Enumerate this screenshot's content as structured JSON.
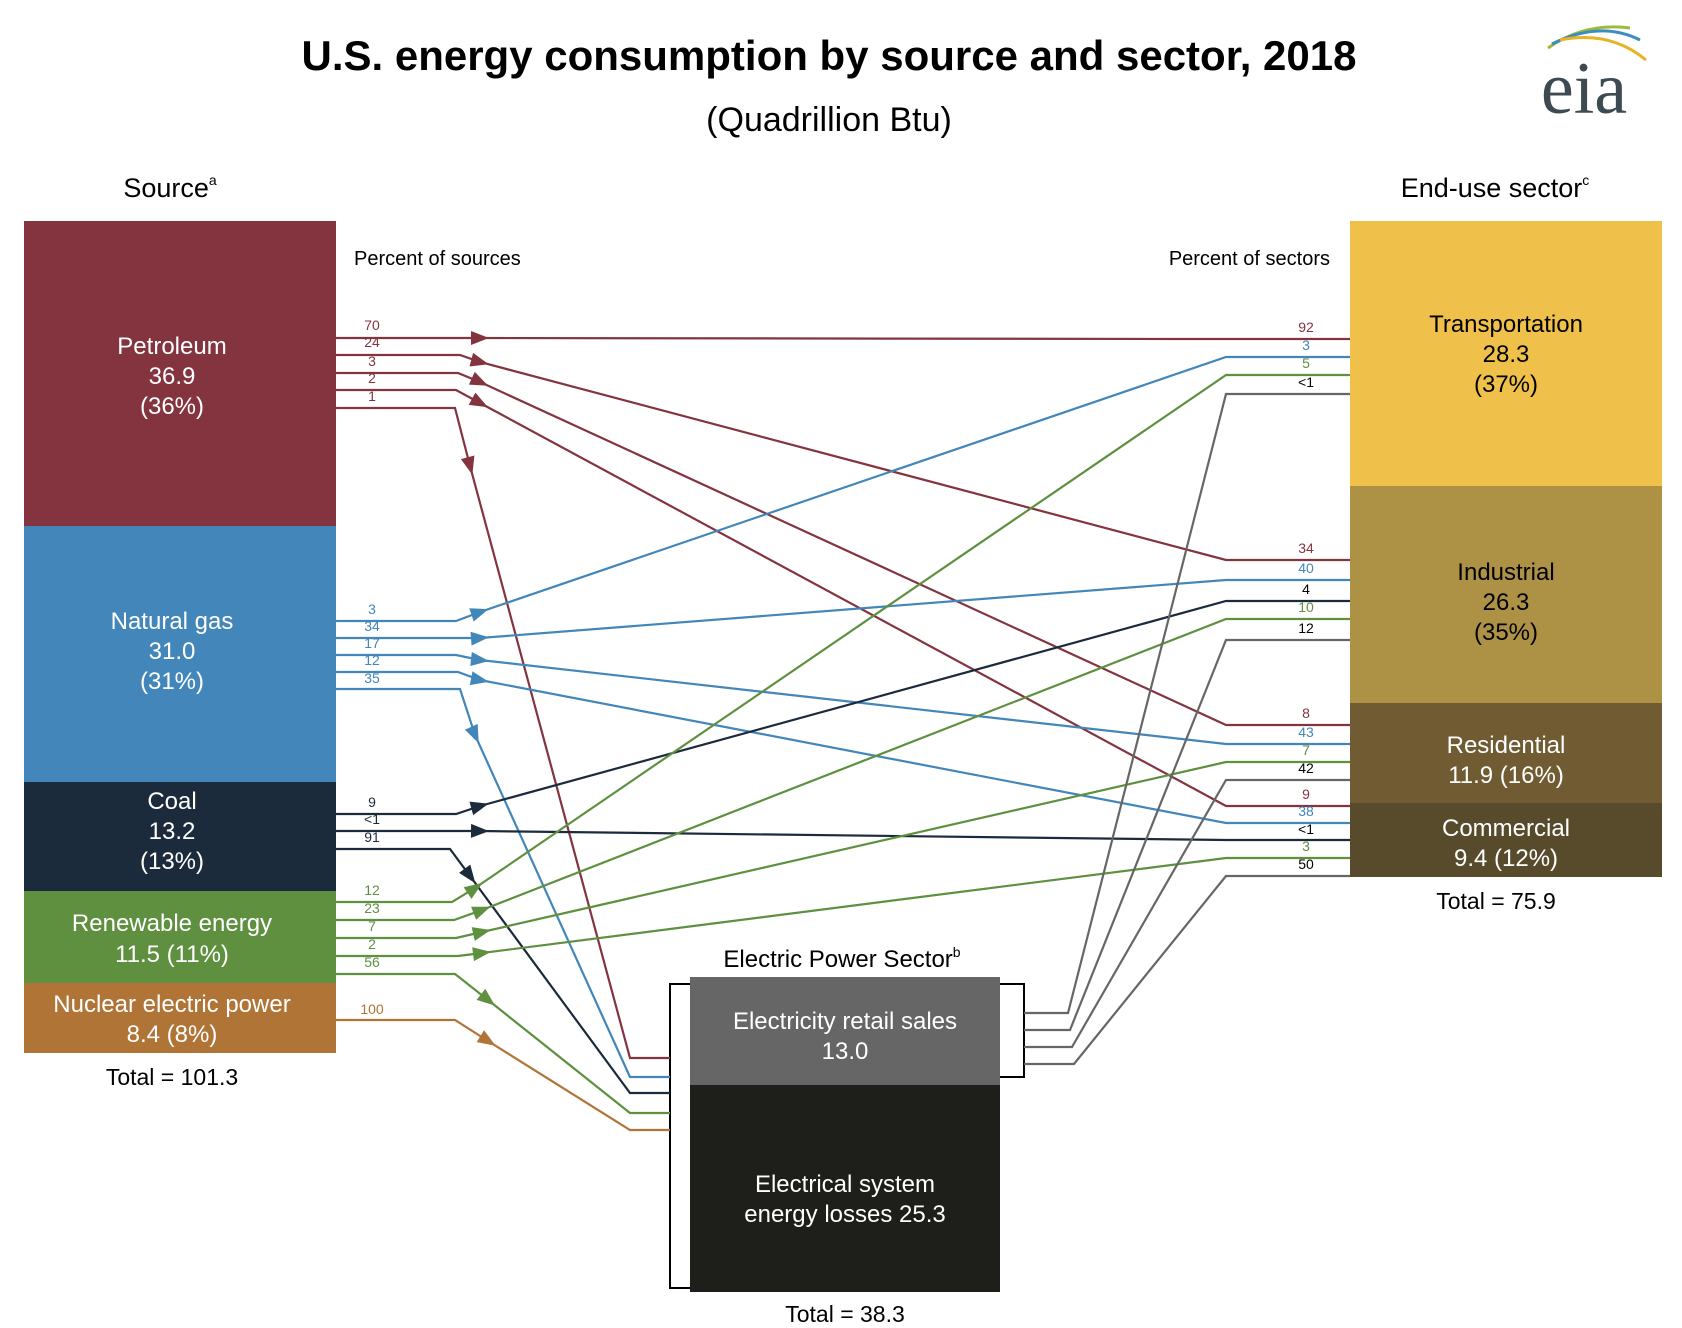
{
  "title": "U.S. energy consumption by source and sector, 2018",
  "subtitle": "(Quadrillion Btu)",
  "logo": {
    "text": "eia",
    "colors": [
      "#3d4a52",
      "#9bbb3b",
      "#3a8cc1",
      "#e8b423"
    ]
  },
  "source_heading": {
    "text": "Source",
    "sup": "a"
  },
  "sector_heading": {
    "text": "End-use sector",
    "sup": "c"
  },
  "power_heading": {
    "text": "Electric Power Sector",
    "sup": "b"
  },
  "percent_of_sources": "Percent of sources",
  "percent_of_sectors": "Percent of sectors",
  "sources": [
    {
      "id": "petroleum",
      "name": "Petroleum",
      "value": "36.9",
      "share": "(36%)",
      "color": "#83343f",
      "outflows": [
        "70",
        "24",
        "3",
        "2",
        "1"
      ]
    },
    {
      "id": "natural-gas",
      "name": "Natural gas",
      "value": "31.0",
      "share": "(31%)",
      "color": "#4286ba",
      "outflows": [
        "3",
        "34",
        "17",
        "12",
        "35"
      ]
    },
    {
      "id": "coal",
      "name": "Coal",
      "value": "13.2",
      "share": "(13%)",
      "color": "#1c2b3c",
      "outflows": [
        "9",
        "<1",
        "91"
      ]
    },
    {
      "id": "renewable",
      "name": "Renewable energy",
      "value": "11.5",
      "share": "(11%)",
      "label": "11.5 (11%)",
      "color": "#5f9040",
      "outflows": [
        "12",
        "23",
        "7",
        "2",
        "56"
      ]
    },
    {
      "id": "nuclear",
      "name": "Nuclear electric power",
      "value": "8.4",
      "share": "(8%)",
      "label": "8.4 (8%)",
      "color": "#b07436",
      "outflows": [
        "100"
      ]
    }
  ],
  "sources_total": "Total = 101.3",
  "sectors": [
    {
      "id": "transportation",
      "name": "Transportation",
      "value": "28.3",
      "share": "(37%)",
      "color": "#efc14b",
      "text_color": "#000000",
      "inflows": [
        "92",
        "3",
        "5",
        "<1"
      ]
    },
    {
      "id": "industrial",
      "name": "Industrial",
      "value": "26.3",
      "share": "(35%)",
      "color": "#ad9246",
      "text_color": "#000000",
      "inflows": [
        "34",
        "40",
        "4",
        "10",
        "12"
      ]
    },
    {
      "id": "residential",
      "name": "Residential",
      "value": "11.9",
      "share": "(16%)",
      "label": "11.9 (16%)",
      "color": "#705b32",
      "text_color": "#ffffff",
      "inflows": [
        "8",
        "43",
        "7",
        "42"
      ]
    },
    {
      "id": "commercial",
      "name": "Commercial",
      "value": "9.4",
      "share": "(12%)",
      "label": "9.4 (12%)",
      "color": "#574b2c",
      "text_color": "#ffffff",
      "inflows": [
        "9",
        "38",
        "<1",
        "3",
        "50"
      ]
    }
  ],
  "sectors_total": "Total = 75.9",
  "power": {
    "retail": {
      "name": "Electricity retail sales",
      "value": "13.0",
      "color": "#666666"
    },
    "losses": {
      "line1": "Electrical system",
      "line2": "energy losses  25.3",
      "color": "#1e1e1a"
    },
    "total": "Total = 38.3"
  },
  "flows": [
    {
      "from": "petroleum",
      "to": "transportation",
      "pct_source": "70",
      "pct_sector": "92"
    },
    {
      "from": "petroleum",
      "to": "industrial",
      "pct_source": "24",
      "pct_sector": "34"
    },
    {
      "from": "petroleum",
      "to": "residential",
      "pct_source": "3",
      "pct_sector": "8"
    },
    {
      "from": "petroleum",
      "to": "commercial",
      "pct_source": "2",
      "pct_sector": "9"
    },
    {
      "from": "petroleum",
      "to": "electric-power",
      "pct_source": "1",
      "pct_sector": ""
    },
    {
      "from": "natural-gas",
      "to": "transportation",
      "pct_source": "3",
      "pct_sector": "3"
    },
    {
      "from": "natural-gas",
      "to": "industrial",
      "pct_source": "34",
      "pct_sector": "40"
    },
    {
      "from": "natural-gas",
      "to": "residential",
      "pct_source": "17",
      "pct_sector": "43"
    },
    {
      "from": "natural-gas",
      "to": "commercial",
      "pct_source": "12",
      "pct_sector": "38"
    },
    {
      "from": "natural-gas",
      "to": "electric-power",
      "pct_source": "35",
      "pct_sector": ""
    },
    {
      "from": "coal",
      "to": "industrial",
      "pct_source": "9",
      "pct_sector": "4"
    },
    {
      "from": "coal",
      "to": "commercial",
      "pct_source": "<1",
      "pct_sector": "<1"
    },
    {
      "from": "coal",
      "to": "electric-power",
      "pct_source": "91",
      "pct_sector": ""
    },
    {
      "from": "renewable",
      "to": "transportation",
      "pct_source": "12",
      "pct_sector": "5"
    },
    {
      "from": "renewable",
      "to": "industrial",
      "pct_source": "23",
      "pct_sector": "10"
    },
    {
      "from": "renewable",
      "to": "residential",
      "pct_source": "7",
      "pct_sector": "7"
    },
    {
      "from": "renewable",
      "to": "commercial",
      "pct_source": "2",
      "pct_sector": "3"
    },
    {
      "from": "renewable",
      "to": "electric-power",
      "pct_source": "56",
      "pct_sector": ""
    },
    {
      "from": "nuclear",
      "to": "electric-power",
      "pct_source": "100",
      "pct_sector": ""
    },
    {
      "from": "electric-power",
      "to": "transportation",
      "pct_source": "",
      "pct_sector": "<1"
    },
    {
      "from": "electric-power",
      "to": "industrial",
      "pct_source": "",
      "pct_sector": "12"
    },
    {
      "from": "electric-power",
      "to": "residential",
      "pct_source": "",
      "pct_sector": "42"
    },
    {
      "from": "electric-power",
      "to": "commercial",
      "pct_source": "",
      "pct_sector": "50"
    }
  ]
}
